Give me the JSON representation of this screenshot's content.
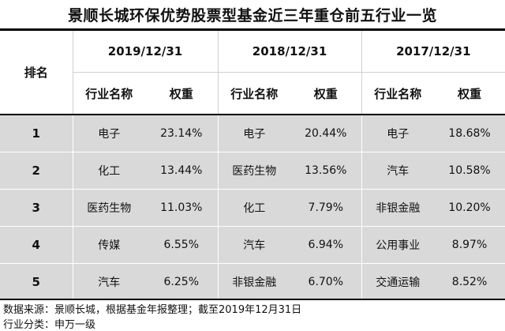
{
  "title": "景顺长城环保优势股票型基金近三年重仓前五行业一览",
  "header": {
    "rank_label": "排名",
    "periods": [
      "2019/12/31",
      "2018/12/31",
      "2017/12/31"
    ],
    "industry_label": "行业名称",
    "weight_label": "权重"
  },
  "rows": [
    {
      "rank": "1",
      "p2019": {
        "industry": "电子",
        "weight": "23.14%"
      },
      "p2018": {
        "industry": "电子",
        "weight": "20.44%"
      },
      "p2017": {
        "industry": "电子",
        "weight": "18.68%"
      }
    },
    {
      "rank": "2",
      "p2019": {
        "industry": "化工",
        "weight": "13.44%"
      },
      "p2018": {
        "industry": "医药生物",
        "weight": "13.56%"
      },
      "p2017": {
        "industry": "汽车",
        "weight": "10.58%"
      }
    },
    {
      "rank": "3",
      "p2019": {
        "industry": "医药生物",
        "weight": "11.03%"
      },
      "p2018": {
        "industry": "化工",
        "weight": "7.79%"
      },
      "p2017": {
        "industry": "非银金融",
        "weight": "10.20%"
      }
    },
    {
      "rank": "4",
      "p2019": {
        "industry": "传媒",
        "weight": "6.55%"
      },
      "p2018": {
        "industry": "汽车",
        "weight": "6.94%"
      },
      "p2017": {
        "industry": "公用事业",
        "weight": "8.97%"
      }
    },
    {
      "rank": "5",
      "p2019": {
        "industry": "汽车",
        "weight": "6.25%"
      },
      "p2018": {
        "industry": "非银金融",
        "weight": "6.70%"
      },
      "p2017": {
        "industry": "交通运输",
        "weight": "8.52%"
      }
    }
  ],
  "footnotes": {
    "source": "数据来源：景顺长城，根据基金年报整理；截至2019年12月31日",
    "classification": "行业分类：申万一级"
  }
}
